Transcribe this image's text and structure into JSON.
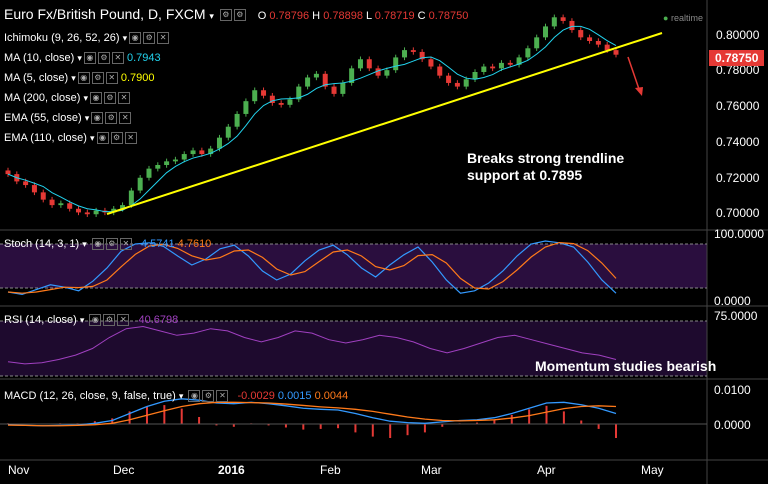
{
  "header": {
    "symbol_title": "Euro Fx/British Pound, D, FXCM",
    "open_label": "O",
    "open": "0.78796",
    "high_label": "H",
    "high": "0.78898",
    "low_label": "L",
    "low": "0.78719",
    "close_label": "C",
    "close": "0.78750",
    "realtime": "realtime"
  },
  "indicators": [
    {
      "label": "Ichimoku (9, 26, 52, 26)",
      "value": "",
      "color": "#ffffff"
    },
    {
      "label": "MA (10, close)",
      "value": "0.7943",
      "color": "#22d3ee"
    },
    {
      "label": "MA (5, close)",
      "value": "0.7900",
      "color": "#ffff00"
    },
    {
      "label": "MA (200, close)",
      "value": "",
      "color": "#ffffff"
    },
    {
      "label": "EMA (55, close)",
      "value": "",
      "color": "#ffffff"
    },
    {
      "label": "EMA (110, close)",
      "value": "",
      "color": "#ffffff"
    }
  ],
  "annotations": {
    "trendline_note": "Breaks strong trendline support at 0.7895",
    "momentum_note": "Momentum studies bearish"
  },
  "colors": {
    "up": "#4caf50",
    "down": "#e53935",
    "trendline": "#ffff00",
    "ma10": "#22d3ee",
    "ma5": "#ffff00",
    "price_tag": "#e53935"
  },
  "stoch": {
    "label": "Stoch (14, 3, 1)",
    "v1": "4.5741",
    "v2": "4.7610",
    "ticks": [
      "100.0000",
      "0.0000"
    ]
  },
  "rsi": {
    "label": "RSI (14, close)",
    "v1": "40.6798",
    "ticks": [
      "75.0000"
    ]
  },
  "macd": {
    "label": "MACD (12, 26, close, 9, false, true)",
    "v1": "-0.0029",
    "v2": "0.0015",
    "v3": "0.0044",
    "ticks": [
      "0.0100",
      "0.0000"
    ]
  },
  "price_axis": {
    "ticks": [
      "0.80000",
      "0.78750",
      "0.78000",
      "0.76000",
      "0.74000",
      "0.72000",
      "0.70000"
    ],
    "current": "0.78750"
  },
  "x_axis": {
    "ticks": [
      "Nov",
      "Dec",
      "2016",
      "Feb",
      "Mar",
      "Apr",
      "May"
    ]
  },
  "chart_data": {
    "type": "candlestick",
    "title": "Euro Fx/British Pound, D, FXCM",
    "ylim": [
      0.693,
      0.812
    ],
    "price_series_approx": [
      0.722,
      0.718,
      0.716,
      0.712,
      0.708,
      0.705,
      0.706,
      0.703,
      0.701,
      0.7,
      0.702,
      0.701,
      0.703,
      0.705,
      0.713,
      0.72,
      0.725,
      0.727,
      0.729,
      0.73,
      0.733,
      0.735,
      0.733,
      0.736,
      0.742,
      0.748,
      0.755,
      0.762,
      0.768,
      0.765,
      0.761,
      0.76,
      0.763,
      0.77,
      0.775,
      0.777,
      0.77,
      0.766,
      0.772,
      0.78,
      0.785,
      0.78,
      0.776,
      0.779,
      0.786,
      0.79,
      0.789,
      0.785,
      0.781,
      0.776,
      0.772,
      0.77,
      0.774,
      0.778,
      0.781,
      0.78,
      0.783,
      0.782,
      0.786,
      0.791,
      0.797,
      0.803,
      0.808,
      0.806,
      0.801,
      0.797,
      0.795,
      0.793,
      0.79,
      0.7875
    ],
    "trendline": {
      "from": 0.698,
      "to": 0.8,
      "label": "Breaks strong trendline support at 0.7895"
    },
    "stoch_percent_approx": [
      10,
      6,
      14,
      22,
      18,
      12,
      28,
      50,
      78,
      90,
      92,
      86,
      70,
      55,
      65,
      82,
      88,
      70,
      45,
      30,
      40,
      62,
      80,
      88,
      72,
      50,
      35,
      55,
      72,
      85,
      60,
      30,
      8,
      12,
      25,
      45,
      70,
      90,
      95,
      92,
      85,
      60,
      30,
      8
    ],
    "rsi_approx": [
      38,
      36,
      37,
      40,
      44,
      50,
      60,
      68,
      70,
      66,
      62,
      64,
      68,
      66,
      60,
      56,
      60,
      66,
      64,
      58,
      55,
      58,
      62,
      60,
      56,
      50,
      46,
      50,
      55,
      60,
      62,
      58,
      54,
      50,
      46,
      44,
      40
    ],
    "macd_approx": [
      -0.0002,
      -0.0004,
      -0.0005,
      -0.0004,
      -0.0003,
      0.0002,
      0.001,
      0.003,
      0.005,
      0.0065,
      0.0072,
      0.0068,
      0.006,
      0.0058,
      0.0062,
      0.0058,
      0.0052,
      0.0045,
      0.0042,
      0.004,
      0.003,
      0.0018,
      0.0008,
      0.0004,
      0.0002,
      0.0006,
      0.001,
      0.0012,
      0.0018,
      0.003,
      0.0045,
      0.006,
      0.0062,
      0.0055,
      0.0045,
      0.003
    ],
    "signal_approx": [
      -0.0003,
      -0.0004,
      -0.0005,
      -0.0005,
      -0.0004,
      -0.0002,
      0.0002,
      0.0012,
      0.0025,
      0.0038,
      0.005,
      0.0058,
      0.0062,
      0.0062,
      0.0061,
      0.006,
      0.0057,
      0.0053,
      0.0049,
      0.0046,
      0.0042,
      0.0036,
      0.0028,
      0.002,
      0.0014,
      0.001,
      0.0009,
      0.001,
      0.0012,
      0.0017,
      0.0024,
      0.0034,
      0.0044,
      0.005,
      0.0052,
      0.005
    ]
  }
}
